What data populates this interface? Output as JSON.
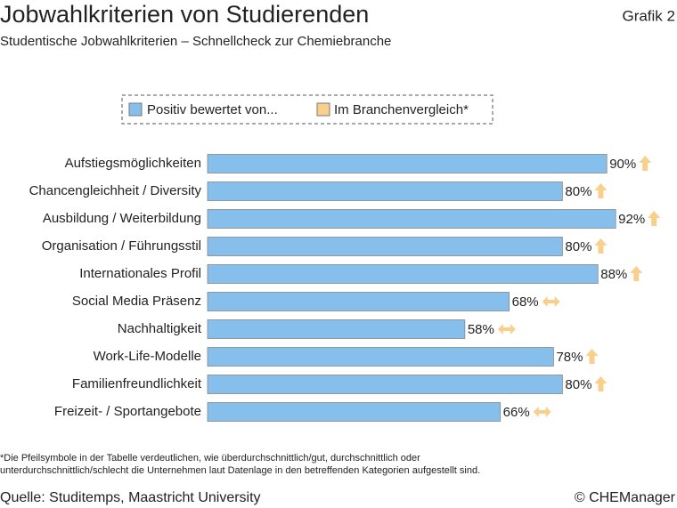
{
  "chart_data": {
    "type": "barh",
    "title": "Jobwahlkriterien von Studierenden",
    "label": "Grafik 2",
    "subtitle": "Studentische Jobwahlkriterien – Schnellcheck zur Chemiebranche",
    "categories": [
      "Aufstiegsmöglichkeiten",
      "Chancengleichheit / Diversity",
      "Ausbildung / Weiterbildung",
      "Organisation / Führungsstil",
      "Internationales Profil",
      "Social Media Präsenz",
      "Nachhaltigkeit",
      "Work-Life-Modelle",
      "Familienfreundlichkeit",
      "Freizeit- / Sportangebote"
    ],
    "series": [
      {
        "name": "Positiv bewertet von...",
        "color": "#86bfeb",
        "values": [
          90,
          80,
          92,
          80,
          88,
          68,
          58,
          78,
          80,
          66
        ],
        "value_labels": [
          "90%",
          "80%",
          "92%",
          "80%",
          "88%",
          "68%",
          "58%",
          "78%",
          "80%",
          "66%"
        ]
      }
    ],
    "comparison": {
      "name": "Im Branchenvergleich*",
      "color": "#f9cf8c",
      "arrows": [
        "up",
        "up",
        "up",
        "up",
        "up",
        "both",
        "both",
        "up",
        "up",
        "both"
      ]
    },
    "xlim": [
      0,
      100
    ],
    "footnote": [
      "*Die Pfeilsymbole in der Tabelle verdeutlichen, wie überdurchschnittlich/gut, durchschnittlich oder",
      "unterdurchschnittlich/schlecht die Unternehmen laut Datenlage in den betreffenden Kategorien aufgestellt sind."
    ],
    "source": "Quelle: Studitemps, Maastricht University",
    "copyright": "© CHEManager"
  }
}
